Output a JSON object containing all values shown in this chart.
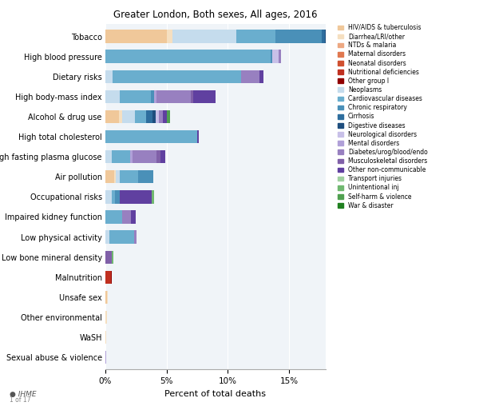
{
  "title": "Greater London, Both sexes, All ages, 2016",
  "xlabel": "Percent of total deaths",
  "risk_factors": [
    "Tobacco",
    "High blood pressure",
    "Dietary risks",
    "High body-mass index",
    "Alcohol & drug use",
    "High total cholesterol",
    "High fasting plasma glucose",
    "Air pollution",
    "Occupational risks",
    "Impaired kidney function",
    "Low physical activity",
    "Low bone mineral density",
    "Malnutrition",
    "Unsafe sex",
    "Other environmental",
    "WaSH",
    "Sexual abuse & violence"
  ],
  "disease_categories": [
    "HIV/AIDS & tuberculosis",
    "Diarrhea/LRI/other",
    "NTDs & malaria",
    "Maternal disorders",
    "Neonatal disorders",
    "Nutritional deficiencies",
    "Other group I",
    "Neoplasms",
    "Cardiovascular diseases",
    "Chronic respiratory",
    "Cirrhosis",
    "Digestive diseases",
    "Neurological disorders",
    "Mental disorders",
    "Diabetes/urog/blood/endo",
    "Musculoskeletal disorders",
    "Other non-communicable",
    "Transport injuries",
    "Unintentional inj",
    "Self-harm & violence",
    "War & disaster"
  ],
  "colors": {
    "HIV/AIDS & tuberculosis": "#f0c89a",
    "Diarrhea/LRI/other": "#f5dfc0",
    "NTDs & malaria": "#eda882",
    "Maternal disorders": "#e07850",
    "Neonatal disorders": "#d05030",
    "Nutritional deficiencies": "#c03020",
    "Other group I": "#900000",
    "Neoplasms": "#c5dced",
    "Cardiovascular diseases": "#6aaece",
    "Chronic respiratory": "#4a90b8",
    "Cirrhosis": "#2e6e9e",
    "Digestive diseases": "#1e4e7e",
    "Neurological disorders": "#c8c0e8",
    "Mental disorders": "#b0a0d8",
    "Diabetes/urog/blood/endo": "#9880c0",
    "Musculoskeletal disorders": "#8060a8",
    "Other non-communicable": "#6040a0",
    "Transport injuries": "#a0d0a0",
    "Unintentional inj": "#70b870",
    "Self-harm & violence": "#50a050",
    "War & disaster": "#208020"
  },
  "segment_order": [
    "HIV/AIDS & tuberculosis",
    "Diarrhea/LRI/other",
    "NTDs & malaria",
    "Maternal disorders",
    "Neonatal disorders",
    "Nutritional deficiencies",
    "Other group I",
    "Neoplasms",
    "Cardiovascular diseases",
    "Chronic respiratory",
    "Cirrhosis",
    "Digestive diseases",
    "Neurological disorders",
    "Mental disorders",
    "Diabetes/urog/blood/endo",
    "Musculoskeletal disorders",
    "Other non-communicable",
    "Transport injuries",
    "Unintentional inj",
    "Self-harm & violence",
    "War & disaster"
  ],
  "bar_data": {
    "Tobacco": {
      "Neoplasms": 5.2,
      "Cardiovascular diseases": 3.2,
      "Chronic respiratory": 3.8,
      "Cirrhosis": 0.25,
      "Digestive diseases": 0.2,
      "Diarrhea/LRI/other": 0.5,
      "HIV/AIDS & tuberculosis": 5.0
    },
    "High blood pressure": {
      "Cardiovascular diseases": 13.5,
      "Neurological disorders": 0.5,
      "Chronic respiratory": 0.15,
      "Diabetes/urog/blood/endo": 0.2
    },
    "Dietary risks": {
      "Cardiovascular diseases": 10.5,
      "Neoplasms": 0.6,
      "Diabetes/urog/blood/endo": 1.5,
      "Other non-communicable": 0.3
    },
    "High body-mass index": {
      "Musculoskeletal disorders": 0.25,
      "Mental disorders": 0.15,
      "Neoplasms": 1.2,
      "Cardiovascular diseases": 2.5,
      "Chronic respiratory": 0.3,
      "Diabetes/urog/blood/endo": 2.8,
      "Other non-communicable": 1.8
    },
    "Alcohol & drug use": {
      "War & disaster": 0.0,
      "Self-harm & violence": 0.25,
      "Unintentional inj": 0.0,
      "Transport injuries": 0.0,
      "Other non-communicable": 0.3,
      "Musculoskeletal disorders": 0.0,
      "Diabetes/urog/blood/endo": 0.3,
      "Mental disorders": 0.0,
      "Neurological disorders": 0.3,
      "Digestive diseases": 0.25,
      "Cirrhosis": 0.55,
      "Chronic respiratory": 0.0,
      "Cardiovascular diseases": 0.9,
      "Neoplasms": 1.0,
      "Other group I": 0.0,
      "Nutritional deficiencies": 0.0,
      "Neonatal disorders": 0.0,
      "Maternal disorders": 0.0,
      "NTDs & malaria": 0.0,
      "Diarrhea/LRI/other": 0.3,
      "HIV/AIDS & tuberculosis": 1.1
    },
    "High total cholesterol": {
      "Cardiovascular diseases": 7.5,
      "Other non-communicable": 0.15
    },
    "High fasting plasma glucose": {
      "Cardiovascular diseases": 1.5,
      "Diabetes/urog/blood/endo": 2.0,
      "Mental disorders": 0.2,
      "Musculoskeletal disorders": 0.3,
      "Neoplasms": 0.5,
      "Other non-communicable": 0.4
    },
    "Air pollution": {
      "Cardiovascular diseases": 1.5,
      "Chronic respiratory": 1.2,
      "Neoplasms": 0.35,
      "Diarrhea/LRI/other": 0.15,
      "HIV/AIDS & tuberculosis": 0.7
    },
    "Occupational risks": {
      "Cardiovascular diseases": 0.3,
      "Chronic respiratory": 0.4,
      "Neoplasms": 0.5,
      "Unintentional inj": 0.2,
      "Other non-communicable": 2.6
    },
    "Impaired kidney function": {
      "Cardiovascular diseases": 1.4,
      "Diabetes/urog/blood/endo": 0.7,
      "Other non-communicable": 0.4
    },
    "Low physical activity": {
      "Cardiovascular diseases": 2.0,
      "Neoplasms": 0.35,
      "Diabetes/urog/blood/endo": 0.2
    },
    "Low bone mineral density": {
      "Musculoskeletal disorders": 0.55,
      "Unintentional inj": 0.1
    },
    "Malnutrition": {
      "Nutritional deficiencies": 0.45,
      "Other group I": 0.08
    },
    "Unsafe sex": {
      "HIV/AIDS & tuberculosis": 0.15,
      "Diarrhea/LRI/other": 0.03
    },
    "Other environmental": {
      "Diarrhea/LRI/other": 0.1,
      "Other non-communicable": 0.05
    },
    "WaSH": {
      "Diarrhea/LRI/other": 0.06
    },
    "Sexual abuse & violence": {
      "Mental disorders": 0.04,
      "Self-harm & violence": 0.03
    }
  },
  "background_color": "#ffffff",
  "plot_bg_color": "#f0f4f8",
  "xlim": [
    0,
    18
  ],
  "xticks": [
    0,
    5,
    10,
    15
  ],
  "bar_height": 0.65
}
